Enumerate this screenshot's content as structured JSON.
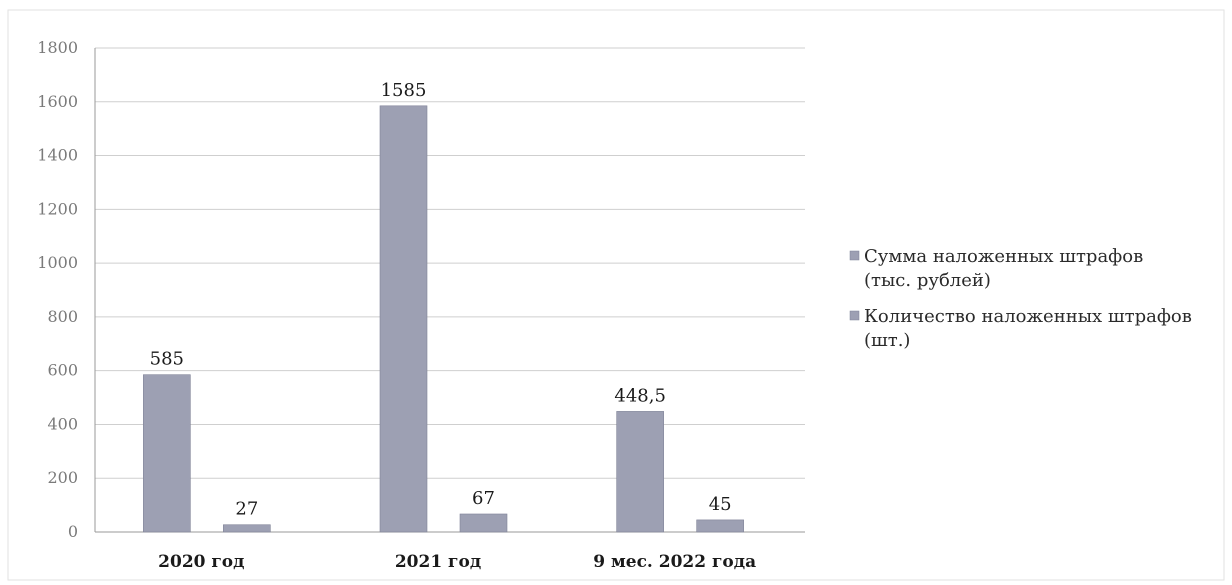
{
  "chart_data": {
    "type": "bar",
    "categories": [
      "2020 год",
      "2021 год",
      "9 мес. 2022 года"
    ],
    "series": [
      {
        "name_lines": [
          "Сумма наложенных штрафов",
          "(тыс. рублей)"
        ],
        "values": [
          585,
          1585,
          448.5
        ],
        "value_labels": [
          "585",
          "1585",
          "448,5"
        ],
        "color": "#9da0b3"
      },
      {
        "name_lines": [
          "Количество наложенных штрафов",
          "(шт.)"
        ],
        "values": [
          27,
          67,
          45
        ],
        "value_labels": [
          "27",
          "67",
          "45"
        ],
        "color": "#9da0b3"
      }
    ],
    "y_ticks": [
      0,
      200,
      400,
      600,
      800,
      1000,
      1200,
      1400,
      1600,
      1800
    ],
    "ylim": [
      0,
      1800
    ],
    "grid": true,
    "legend_position": "right"
  }
}
